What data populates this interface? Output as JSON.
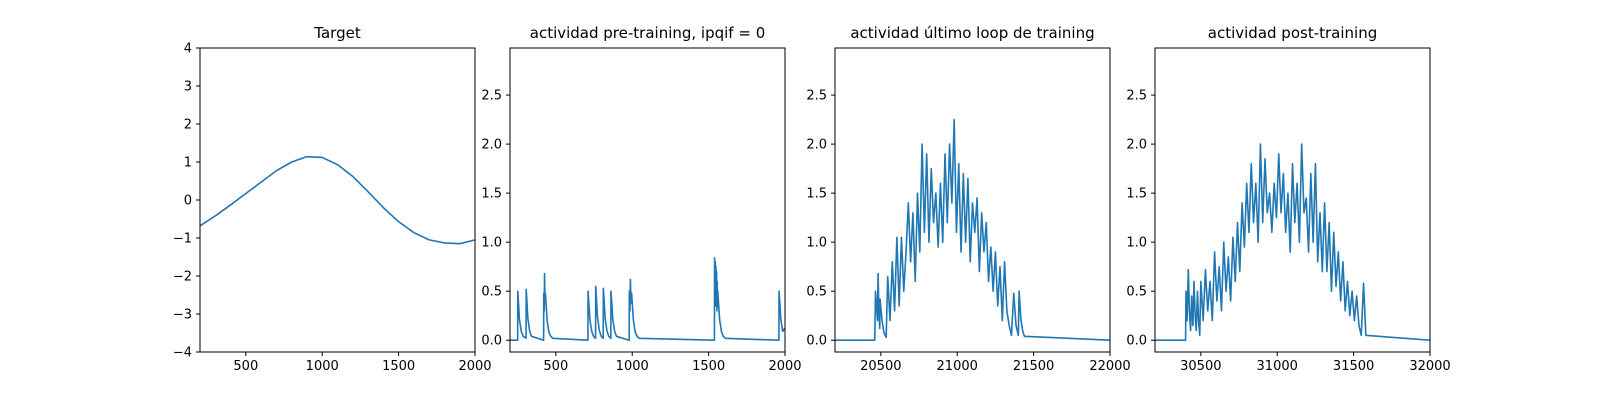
{
  "colors": {
    "line": "#1f77b4",
    "axes": "#000000"
  },
  "chart_data": [
    {
      "type": "line",
      "title": "Target",
      "xlim": [
        200,
        2000
      ],
      "ylim": [
        -4,
        4
      ],
      "xticks": [
        500,
        1000,
        1500,
        2000
      ],
      "yticks": [
        -4,
        -3,
        -2,
        -1,
        0,
        1,
        2,
        3,
        4
      ],
      "series": [
        {
          "x": [
            200,
            300,
            400,
            500,
            600,
            700,
            800,
            900,
            1000,
            1100,
            1200,
            1300,
            1400,
            1500,
            1600,
            1700,
            1800,
            1900,
            2000
          ],
          "y": [
            -0.68,
            -0.42,
            -0.13,
            0.17,
            0.47,
            0.77,
            1.0,
            1.14,
            1.12,
            0.93,
            0.62,
            0.22,
            -0.2,
            -0.57,
            -0.86,
            -1.05,
            -1.13,
            -1.15,
            -1.05
          ]
        }
      ]
    },
    {
      "type": "line",
      "title": "actividad pre-training, ipqif = 0",
      "xlim": [
        200,
        2000
      ],
      "ylim": [
        -0.12,
        2.98
      ],
      "xticks": [
        500,
        1000,
        1500,
        2000
      ],
      "yticks": [
        0.0,
        0.5,
        1.0,
        1.5,
        2.0,
        2.5
      ],
      "series": [
        {
          "x": [
            200,
            250,
            251,
            262,
            274,
            286,
            305,
            306,
            317,
            329,
            341,
            420,
            421,
            424,
            426,
            429,
            432,
            443,
            455,
            467,
            480,
            710,
            711,
            723,
            735,
            747,
            760,
            761,
            773,
            785,
            797,
            810,
            811,
            823,
            835,
            847,
            860,
            861,
            873,
            885,
            897,
            980,
            981,
            985,
            988,
            992,
            996,
            1008,
            1020,
            1032,
            1045,
            1538,
            1539,
            1542,
            1544,
            1546,
            1548,
            1550,
            1552,
            1554,
            1556,
            1558,
            1560,
            1572,
            1584,
            1596,
            1610,
            1960,
            1961,
            1973,
            1985,
            1997,
            2000
          ],
          "y": [
            0,
            0,
            0.5,
            0.21,
            0.09,
            0.04,
            0.02,
            0.52,
            0.22,
            0.09,
            0.04,
            0,
            0.48,
            0.3,
            0.68,
            0.4,
            0.48,
            0.2,
            0.08,
            0.04,
            0.02,
            0,
            0.5,
            0.21,
            0.09,
            0.04,
            0.02,
            0.55,
            0.23,
            0.1,
            0.04,
            0.02,
            0.53,
            0.22,
            0.09,
            0.04,
            0.02,
            0.5,
            0.21,
            0.09,
            0.04,
            0,
            0.5,
            0.3,
            0.62,
            0.38,
            0.48,
            0.2,
            0.08,
            0.04,
            0.02,
            0,
            0.84,
            0.45,
            0.8,
            0.35,
            0.75,
            0.4,
            0.7,
            0.3,
            0.6,
            0.34,
            0.5,
            0.21,
            0.09,
            0.04,
            0.02,
            0,
            0.5,
            0.21,
            0.09,
            0.12,
            0.12
          ]
        }
      ]
    },
    {
      "type": "line",
      "title": "actividad último loop de training",
      "xlim": [
        20200,
        22000
      ],
      "ylim": [
        -0.12,
        2.98
      ],
      "xticks": [
        20500,
        21000,
        21500,
        22000
      ],
      "yticks": [
        0.0,
        0.5,
        1.0,
        1.5,
        2.0,
        2.5
      ],
      "series": [
        {
          "x": [
            20200,
            20460,
            20465,
            20478,
            20482,
            20487,
            20493,
            20495,
            20508,
            20520,
            20535,
            20545,
            20560,
            20575,
            20590,
            20605,
            20620,
            20635,
            20650,
            20665,
            20680,
            20695,
            20710,
            20725,
            20740,
            20755,
            20770,
            20785,
            20800,
            20815,
            20830,
            20845,
            20860,
            20875,
            20890,
            20905,
            20920,
            20935,
            20950,
            20965,
            20980,
            20995,
            21010,
            21025,
            21040,
            21055,
            21070,
            21085,
            21100,
            21115,
            21130,
            21145,
            21160,
            21175,
            21190,
            21205,
            21220,
            21235,
            21250,
            21265,
            21280,
            21295,
            21310,
            21325,
            21340,
            21355,
            21370,
            21385,
            21400,
            21405,
            21417,
            21429,
            21440,
            22000
          ],
          "y": [
            0,
            0,
            0.5,
            0.2,
            0.68,
            0.3,
            0.12,
            0.42,
            0.2,
            0.08,
            0.03,
            0.65,
            0.2,
            0.8,
            0.3,
            1.05,
            0.35,
            1.05,
            0.5,
            0.9,
            1.4,
            0.8,
            1.3,
            0.6,
            1.5,
            0.9,
            2.0,
            1.1,
            1.9,
            1.0,
            1.75,
            1.2,
            1.5,
            0.95,
            1.6,
            1.0,
            1.9,
            1.2,
            2.0,
            1.4,
            2.25,
            1.1,
            1.8,
            0.9,
            1.7,
            1.0,
            1.65,
            0.8,
            1.4,
            1.1,
            1.45,
            0.7,
            1.3,
            0.9,
            1.2,
            0.6,
            0.95,
            0.5,
            0.9,
            0.35,
            0.75,
            0.2,
            0.8,
            0.3,
            0.15,
            0.05,
            0.48,
            0.15,
            0.05,
            0.5,
            0.21,
            0.09,
            0.04,
            0
          ]
        }
      ]
    },
    {
      "type": "line",
      "title": "actividad post-training",
      "xlim": [
        30200,
        32000
      ],
      "ylim": [
        -0.12,
        2.98
      ],
      "xticks": [
        30500,
        31000,
        31500,
        32000
      ],
      "yticks": [
        0.0,
        0.5,
        1.0,
        1.5,
        2.0,
        2.5
      ],
      "series": [
        {
          "x": [
            30200,
            30400,
            30403,
            30410,
            30418,
            30425,
            30433,
            30440,
            30448,
            30455,
            30463,
            30470,
            30478,
            30485,
            30493,
            30500,
            30515,
            30530,
            30545,
            30560,
            30575,
            30590,
            30605,
            30620,
            30635,
            30650,
            30665,
            30680,
            30695,
            30710,
            30725,
            30740,
            30755,
            30770,
            30785,
            30800,
            30815,
            30830,
            30845,
            30860,
            30875,
            30890,
            30905,
            30920,
            30935,
            30950,
            30965,
            30980,
            30995,
            31010,
            31025,
            31040,
            31055,
            31070,
            31085,
            31100,
            31115,
            31130,
            31145,
            31160,
            31175,
            31190,
            31205,
            31220,
            31235,
            31250,
            31265,
            31280,
            31295,
            31310,
            31325,
            31340,
            31355,
            31370,
            31385,
            31400,
            31415,
            31430,
            31445,
            31460,
            31475,
            31490,
            31505,
            31520,
            31535,
            31550,
            31565,
            31580,
            32000
          ],
          "y": [
            0,
            0,
            0.5,
            0.2,
            0.72,
            0.3,
            0.1,
            0.45,
            0.15,
            0.6,
            0.25,
            0.1,
            0.5,
            0.2,
            0.05,
            0.6,
            0.2,
            0.72,
            0.3,
            0.6,
            0.2,
            0.9,
            0.4,
            0.75,
            0.3,
            1.0,
            0.5,
            0.85,
            0.4,
            1.05,
            0.6,
            1.2,
            0.7,
            1.4,
            0.95,
            1.6,
            1.1,
            1.8,
            1.2,
            1.6,
            1.0,
            2.0,
            1.2,
            1.85,
            1.3,
            1.5,
            1.1,
            1.6,
            1.25,
            1.9,
            1.3,
            1.7,
            1.1,
            1.5,
            0.9,
            1.8,
            1.2,
            1.6,
            1.0,
            2.0,
            1.3,
            1.45,
            0.9,
            1.7,
            1.0,
            1.8,
            0.8,
            1.3,
            0.7,
            1.4,
            0.7,
            1.2,
            0.5,
            1.1,
            0.55,
            0.9,
            0.4,
            0.8,
            0.3,
            0.6,
            0.25,
            0.5,
            0.2,
            0.45,
            0.15,
            0.05,
            0.58,
            0.05,
            0
          ]
        }
      ]
    }
  ]
}
